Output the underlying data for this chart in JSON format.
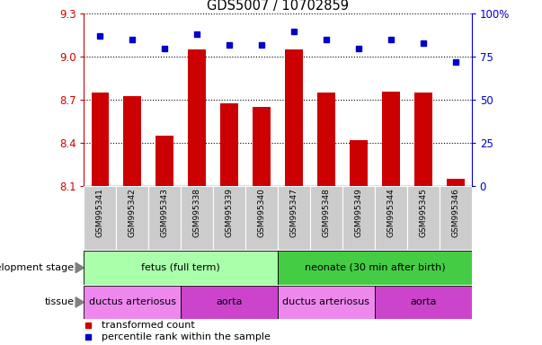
{
  "title": "GDS5007 / 10702859",
  "samples": [
    "GSM995341",
    "GSM995342",
    "GSM995343",
    "GSM995338",
    "GSM995339",
    "GSM995340",
    "GSM995347",
    "GSM995348",
    "GSM995349",
    "GSM995344",
    "GSM995345",
    "GSM995346"
  ],
  "bar_values": [
    8.75,
    8.73,
    8.45,
    9.05,
    8.68,
    8.65,
    9.05,
    8.75,
    8.42,
    8.76,
    8.75,
    8.15
  ],
  "dot_values": [
    87,
    85,
    80,
    88,
    82,
    82,
    90,
    85,
    80,
    85,
    83,
    72
  ],
  "ylim_left": [
    8.1,
    9.3
  ],
  "ylim_right": [
    0,
    100
  ],
  "yticks_left": [
    8.1,
    8.4,
    8.7,
    9.0,
    9.3
  ],
  "yticks_right": [
    0,
    25,
    50,
    75,
    100
  ],
  "bar_color": "#cc0000",
  "dot_color": "#0000cc",
  "bar_bottom": 8.1,
  "development_stage_groups": [
    {
      "label": "fetus (full term)",
      "start": 0,
      "end": 6,
      "color": "#aaffaa"
    },
    {
      "label": "neonate (30 min after birth)",
      "start": 6,
      "end": 12,
      "color": "#44cc44"
    }
  ],
  "tissue_groups": [
    {
      "label": "ductus arteriosus",
      "start": 0,
      "end": 3,
      "color": "#ee88ee"
    },
    {
      "label": "aorta",
      "start": 3,
      "end": 6,
      "color": "#cc44cc"
    },
    {
      "label": "ductus arteriosus",
      "start": 6,
      "end": 9,
      "color": "#ee88ee"
    },
    {
      "label": "aorta",
      "start": 9,
      "end": 12,
      "color": "#cc44cc"
    }
  ],
  "legend_items": [
    {
      "label": "transformed count",
      "color": "#cc0000"
    },
    {
      "label": "percentile rank within the sample",
      "color": "#0000cc"
    }
  ],
  "tick_label_color_left": "#cc0000",
  "tick_label_color_right": "#0000cc",
  "xticklabel_bg": "#cccccc",
  "dev_stage_label": "development stage",
  "tissue_label": "tissue"
}
